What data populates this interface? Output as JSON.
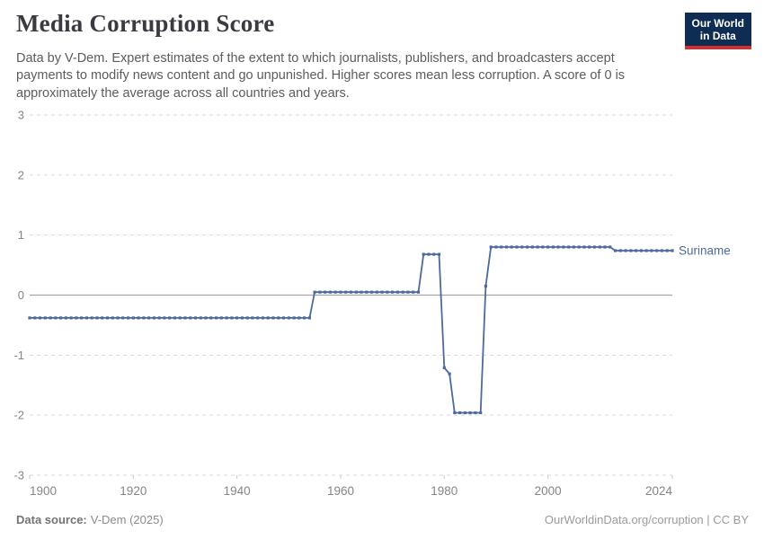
{
  "header": {
    "title": "Media Corruption Score",
    "subtitle": "Data by V-Dem. Expert estimates of the extent to which journalists, publishers, and broadcasters accept payments to modify news content and go unpunished. Higher scores mean less corruption. A score of 0 is approximately the average across all countries and years.",
    "logo": {
      "line1": "Our World",
      "line2": "in Data"
    }
  },
  "chart_data": {
    "type": "line",
    "title": "Media Corruption Score",
    "xlabel": "",
    "ylabel": "",
    "xlim": [
      1900,
      2024
    ],
    "ylim": [
      -3,
      3
    ],
    "xticks": [
      1900,
      1920,
      1940,
      1960,
      1980,
      2000,
      2024
    ],
    "yticks": [
      3,
      2,
      1,
      0,
      -1,
      -2,
      -3
    ],
    "grid": "horizontal-dashed",
    "zero_line": true,
    "legend_position": "end-of-line-label",
    "series": [
      {
        "name": "Suriname",
        "color": "#4C6A9C",
        "marker": "square",
        "segments": [
          {
            "from_year": 1900,
            "to_year": 1954,
            "value": -0.38
          },
          {
            "from_year": 1955,
            "to_year": 1975,
            "value": 0.05
          },
          {
            "from_year": 1976,
            "to_year": 1979,
            "value": 0.68
          },
          {
            "from_year": 1980,
            "to_year": 1980,
            "value": -1.21
          },
          {
            "from_year": 1981,
            "to_year": 1981,
            "value": -1.31
          },
          {
            "from_year": 1982,
            "to_year": 1987,
            "value": -1.96
          },
          {
            "from_year": 1988,
            "to_year": 1988,
            "value": 0.15
          },
          {
            "from_year": 1989,
            "to_year": 2012,
            "value": 0.8
          },
          {
            "from_year": 2013,
            "to_year": 2024,
            "value": 0.74
          }
        ]
      }
    ]
  },
  "footer": {
    "data_source_label": "Data source:",
    "data_source_value": "V-Dem (2025)",
    "attribution": "OurWorldinData.org/corruption | CC BY"
  },
  "colors": {
    "grid": "#dadada",
    "zero_line": "#a6a6a6",
    "axis_text": "#858585",
    "tick_mark": "#c9c9c9",
    "logo_bg": "#0f2d52",
    "logo_accent": "#d42f2f",
    "series_blue": "#4C6A9C"
  }
}
